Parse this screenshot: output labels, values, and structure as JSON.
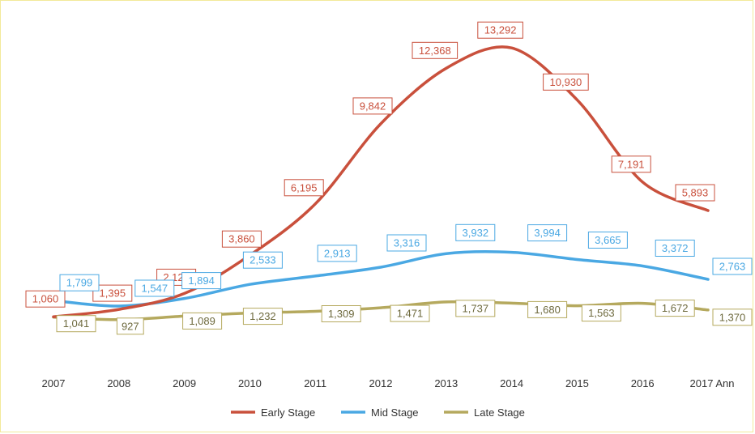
{
  "chart_data": {
    "type": "line",
    "title": "",
    "xlabel": "",
    "ylabel": "",
    "categories": [
      "2007",
      "2008",
      "2009",
      "2010",
      "2011",
      "2012",
      "2013",
      "2014",
      "2015",
      "2016",
      "2017 Ann"
    ],
    "ylim": [
      0,
      14000
    ],
    "grid": false,
    "legend_position": "bottom",
    "series": [
      {
        "name": "Early Stage",
        "color": "#c9503c",
        "values": [
          1060,
          1395,
          2121,
          3860,
          6195,
          9842,
          12368,
          13292,
          10930,
          7191,
          5893
        ],
        "labels": [
          "1,060",
          "1,395",
          "2,121",
          "3,860",
          "6,195",
          "9,842",
          "12,368",
          "13,292",
          "10,930",
          "7,191",
          "5,893"
        ]
      },
      {
        "name": "Mid Stage",
        "color": "#4aa8e3",
        "values": [
          1799,
          1547,
          1894,
          2533,
          2913,
          3316,
          3932,
          3994,
          3665,
          3372,
          2763
        ],
        "labels": [
          "1,799",
          "1,547",
          "1,894",
          "2,533",
          "2,913",
          "3,316",
          "3,932",
          "3,994",
          "3,665",
          "3,372",
          "2,763"
        ]
      },
      {
        "name": "Late Stage",
        "color": "#b5a95e",
        "values": [
          1041,
          927,
          1089,
          1232,
          1309,
          1471,
          1737,
          1680,
          1563,
          1672,
          1370
        ],
        "labels": [
          "1,041",
          "927",
          "1,089",
          "1,232",
          "1,309",
          "1,471",
          "1,737",
          "1,680",
          "1,563",
          "1,672",
          "1,370"
        ]
      }
    ]
  }
}
